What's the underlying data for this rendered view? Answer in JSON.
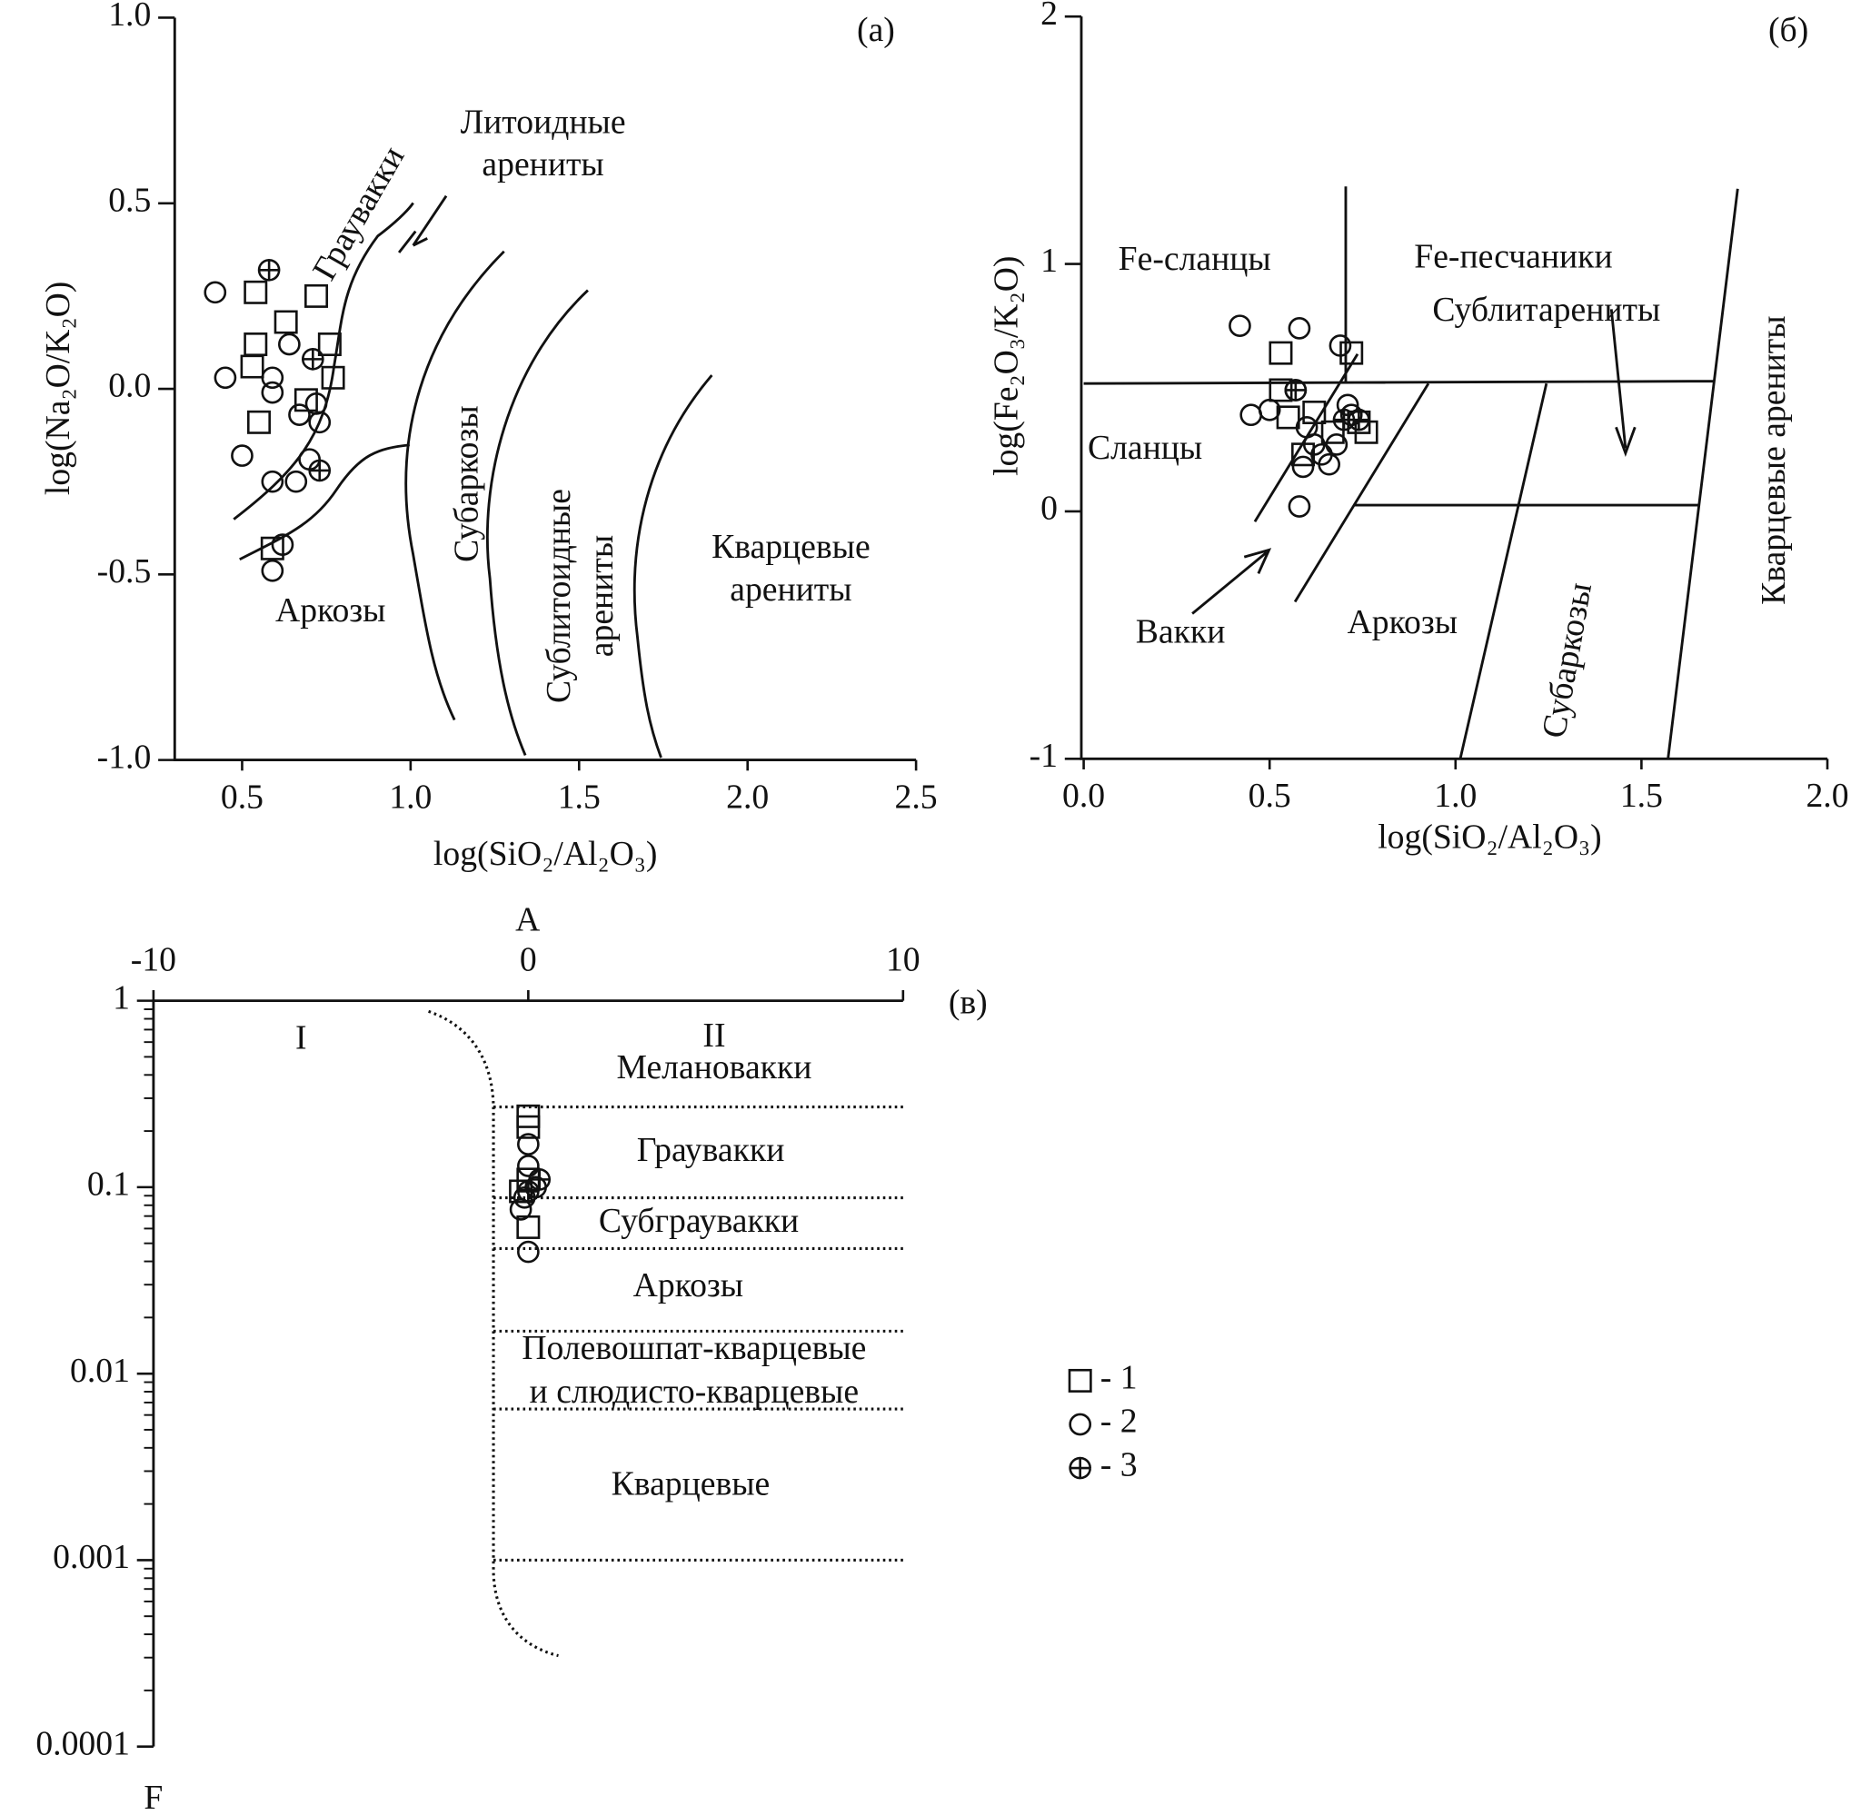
{
  "chart_data": [
    {
      "type": "scatter",
      "panel_label": "(а)",
      "xlabel": "log(SiO₂/Al₂O₃)",
      "ylabel": "log(Na₂O/K₂O)",
      "xlim": [
        0.3,
        2.5
      ],
      "ylim": [
        -1,
        1
      ],
      "xticks": [
        0.5,
        {
          "value": 1,
          "label": "1.0"
        },
        1.5,
        {
          "value": 2,
          "label": "2.0"
        },
        2.5
      ],
      "yticks": [
        {
          "value": 1,
          "label": "1.0"
        },
        0.5,
        {
          "value": 0,
          "label": "0.0"
        },
        -0.5,
        {
          "value": -1,
          "label": "-1.0"
        }
      ],
      "annotations": [
        "Литоидные",
        "арениты",
        "Граувакки",
        "Субаркозы",
        "Сублитоидные",
        "арениты",
        "Кварцевые",
        "арениты",
        "Аркозы"
      ],
      "series": [
        {
          "marker": "square",
          "color": "#111111",
          "x": [
            0.54,
            0.72,
            0.63,
            0.54,
            0.76,
            0.53,
            0.77,
            0.69,
            0.55,
            0.59
          ],
          "values": [
            0.26,
            0.25,
            0.18,
            0.12,
            0.12,
            0.06,
            0.03,
            -0.03,
            -0.09,
            -0.43
          ]
        },
        {
          "marker": "circle",
          "color": "#111111",
          "x": [
            0.42,
            0.45,
            0.59,
            0.59,
            0.64,
            0.67,
            0.72,
            0.73,
            0.5,
            0.7,
            0.59,
            0.66,
            0.62,
            0.59
          ],
          "values": [
            0.26,
            0.03,
            0.03,
            -0.01,
            0.12,
            -0.07,
            -0.04,
            -0.09,
            -0.18,
            -0.19,
            -0.25,
            -0.25,
            -0.42,
            -0.49
          ]
        },
        {
          "marker": "crossed-circle",
          "color": "#111111",
          "x": [
            0.58,
            0.71,
            0.73
          ],
          "values": [
            0.32,
            0.08,
            -0.22
          ]
        }
      ]
    },
    {
      "type": "scatter",
      "panel_label": "(б)",
      "xlabel": "log(SiO₂/Al₂O₃)",
      "ylabel": "log(Fe₂O₃/K₂O)",
      "xlim": [
        0,
        2
      ],
      "ylim": [
        -1,
        2
      ],
      "xticks": [
        {
          "value": 0,
          "label": "0.0"
        },
        0.5,
        {
          "value": 1,
          "label": "1.0"
        },
        1.5,
        {
          "value": 2,
          "label": "2.0"
        }
      ],
      "yticks": [
        2,
        1,
        0,
        -1
      ],
      "annotations": [
        "Fe-сланцы",
        "Fe-песчаники",
        "Сублитарениты",
        "Сланцы",
        "Вакки",
        "Аркозы",
        "Субаркозы",
        "Кварцевые арениты"
      ],
      "series": [
        {
          "marker": "square",
          "color": "#111111",
          "x": [
            0.53,
            0.72,
            0.53,
            0.55,
            0.62,
            0.59,
            0.67,
            0.76,
            0.74
          ],
          "values": [
            0.64,
            0.64,
            0.49,
            0.38,
            0.4,
            0.23,
            0.32,
            0.32,
            0.36
          ]
        },
        {
          "marker": "circle",
          "color": "#111111",
          "x": [
            0.42,
            0.58,
            0.69,
            0.45,
            0.5,
            0.57,
            0.6,
            0.62,
            0.64,
            0.66,
            0.68,
            0.59,
            0.58,
            0.71,
            0.72
          ],
          "values": [
            0.75,
            0.74,
            0.67,
            0.39,
            0.41,
            0.49,
            0.34,
            0.27,
            0.23,
            0.19,
            0.27,
            0.18,
            0.02,
            0.43,
            0.39
          ]
        },
        {
          "marker": "crossed-circle",
          "color": "#111111",
          "x": [
            0.57,
            0.7,
            0.74
          ],
          "values": [
            0.49,
            0.37,
            0.37
          ]
        }
      ]
    },
    {
      "type": "scatter",
      "panel_label": "(в)",
      "xlabel": "A",
      "ylabel": "F",
      "log_y": true,
      "xlim": [
        -10,
        10
      ],
      "ylim": [
        0.0001,
        1
      ],
      "xticks": [
        -10,
        0,
        10
      ],
      "yticks": [
        1,
        0.1,
        0.01,
        0.001,
        0.0001
      ],
      "annotations": [
        "I",
        "II",
        "Мелановакки",
        "Граувакки",
        "Субграувакки",
        "Аркозы",
        "Полевошпат-кварцевые",
        "и слюдисто-кварцевые",
        "Кварцевые"
      ],
      "series": [
        {
          "name": "- 1",
          "marker": "square",
          "color": "#111111",
          "x": [
            0,
            0,
            0,
            0,
            -0.2
          ],
          "values": [
            0.24,
            0.21,
            0.11,
            0.061,
            0.095
          ]
        },
        {
          "name": "- 2",
          "marker": "circle",
          "color": "#111111",
          "x": [
            0,
            0,
            -0.2,
            0,
            0.2,
            -0.1
          ],
          "values": [
            0.17,
            0.13,
            0.076,
            0.045,
            0.1,
            0.088
          ]
        },
        {
          "name": "- 3",
          "marker": "crossed-circle",
          "color": "#111111",
          "x": [
            0.3,
            0
          ],
          "values": [
            0.11,
            0.095
          ]
        }
      ]
    }
  ]
}
